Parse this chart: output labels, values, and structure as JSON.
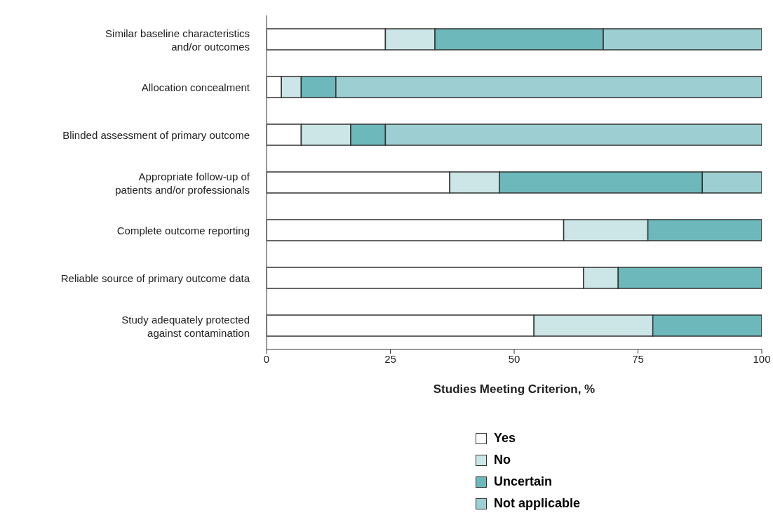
{
  "chart_data": {
    "type": "bar",
    "orientation": "horizontal",
    "stacked": true,
    "xlabel": "Studies Meeting Criterion, %",
    "categories": [
      "Similar baseline characteristics\nand/or outcomes",
      "Allocation concealment",
      "Blinded assessment of primary outcome",
      "Appropriate follow-up of\npatients and/or professionals",
      "Complete outcome reporting",
      "Reliable source of primary outcome data",
      "Study adequately protected\nagainst contamination"
    ],
    "series": [
      {
        "name": "Yes",
        "color": "#ffffff",
        "values": [
          24,
          3,
          7,
          37,
          60,
          64,
          54
        ]
      },
      {
        "name": "No",
        "color": "#cce5e6",
        "values": [
          10,
          4,
          10,
          10,
          17,
          7,
          24
        ]
      },
      {
        "name": "Uncertain",
        "color": "#6cb8ba",
        "values": [
          34,
          7,
          7,
          41,
          23,
          29,
          22
        ]
      },
      {
        "name": "Not applicable",
        "color": "#9dcfd2",
        "values": [
          32,
          86,
          76,
          12,
          0,
          0,
          0
        ]
      }
    ],
    "xlim": [
      0,
      100
    ],
    "xticks": [
      0,
      25,
      50,
      75,
      100
    ],
    "legend": "bottom"
  }
}
